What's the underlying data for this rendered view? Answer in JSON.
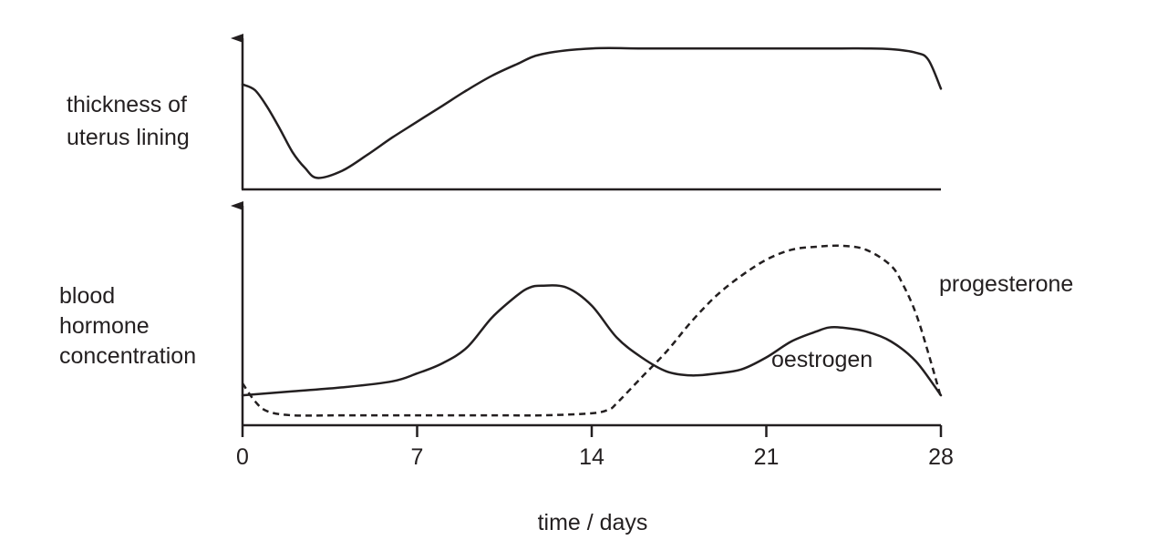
{
  "chart_data": [
    {
      "type": "line",
      "ylabel_lines": [
        "thickness of",
        "uterus lining"
      ],
      "xlim": [
        0,
        28
      ],
      "ylim": [
        0,
        100
      ],
      "series": [
        {
          "style": "solid",
          "x": [
            0,
            0.5,
            1,
            1.5,
            2,
            2.5,
            3,
            4,
            5,
            6,
            7,
            8,
            9,
            10,
            11,
            12,
            14,
            16,
            18,
            20,
            22,
            24,
            25,
            26,
            27,
            27.5,
            28
          ],
          "y": [
            73,
            69,
            57,
            42,
            26,
            15,
            8,
            13,
            24,
            36,
            47,
            58,
            69,
            79,
            87,
            94,
            98,
            98,
            98,
            98,
            98,
            98,
            98,
            97.5,
            95,
            90,
            70
          ]
        }
      ]
    },
    {
      "type": "line",
      "ylabel_lines": [
        "blood",
        "hormone",
        "concentration"
      ],
      "xlabel": "time / days",
      "xticks": [
        0,
        7,
        14,
        21,
        28
      ],
      "xlim": [
        0,
        28
      ],
      "ylim": [
        0,
        100
      ],
      "series": [
        {
          "name": "oestrogen",
          "style": "solid",
          "x": [
            0,
            2,
            4,
            6,
            7,
            8,
            9,
            10,
            11,
            11.5,
            12,
            13,
            14,
            15,
            16,
            17,
            18,
            19,
            20,
            21,
            22,
            23,
            23.5,
            24,
            25,
            26,
            27,
            28
          ],
          "y": [
            15,
            17,
            19,
            22,
            26,
            31,
            39,
            54,
            65,
            69,
            70,
            69,
            60,
            44,
            34,
            27,
            25,
            26,
            28,
            34,
            42,
            47,
            49,
            49,
            47,
            42,
            32,
            15
          ]
        },
        {
          "name": "progesterone",
          "style": "dashed",
          "x": [
            0,
            0.5,
            1,
            2,
            4,
            7,
            10,
            12,
            14,
            14.7,
            15,
            16,
            17,
            18,
            19,
            20,
            21,
            22,
            23,
            24,
            25,
            26,
            26.5,
            27,
            27.5,
            28
          ],
          "y": [
            21,
            12,
            7,
            5,
            5,
            5,
            5,
            5,
            6,
            8,
            11,
            24,
            37,
            52,
            65,
            75,
            83,
            88,
            89.5,
            90,
            88,
            80,
            70,
            56,
            36,
            14
          ]
        }
      ]
    }
  ]
}
